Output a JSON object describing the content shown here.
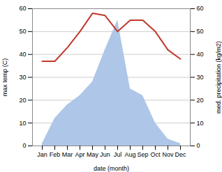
{
  "chart_data": {
    "type": "line",
    "xlabel": "date (month)",
    "ylabel": "max temp (C)",
    "y2label": "med. precipitation (kg/m2)",
    "categories": [
      "Jan",
      "Feb",
      "Mar",
      "Apr",
      "May",
      "Jun",
      "Jul",
      "Aug",
      "Sep",
      "Oct",
      "Nov",
      "Dec"
    ],
    "series": [
      {
        "type": "line",
        "color": "#c0392b",
        "values": [
          37,
          37,
          43,
          50,
          58,
          57,
          50,
          55,
          55,
          50,
          42,
          38
        ]
      },
      {
        "type": "area",
        "axis": "y2",
        "color": "#aec6e8",
        "values": [
          1,
          12,
          18,
          22,
          28,
          42,
          55,
          25,
          22,
          10,
          3,
          1
        ]
      }
    ],
    "ylim": [
      0,
      60
    ],
    "yticks": [
      0,
      10,
      20,
      30,
      40,
      50,
      60
    ],
    "y2lim": [
      0,
      60
    ],
    "y2ticks": [
      0,
      10,
      20,
      30,
      40,
      50,
      60
    ],
    "grid": true
  }
}
